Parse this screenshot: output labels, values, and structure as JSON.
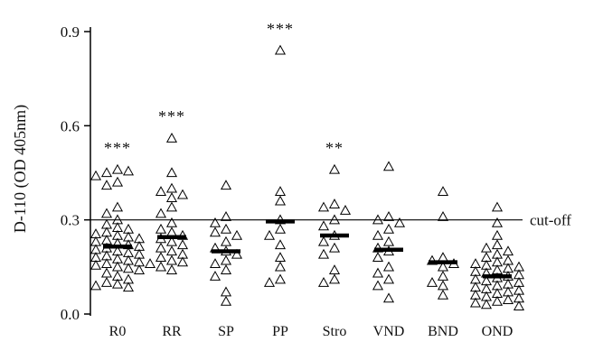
{
  "chart_data": {
    "type": "scatter",
    "title": "",
    "xlabel": "",
    "ylabel": "D-110 (OD 405nm)",
    "ylim": [
      0,
      0.9
    ],
    "y_ticks": [
      "0.0",
      "0.3",
      "0.6",
      "0.9"
    ],
    "y_tick_values": [
      0,
      0.3,
      0.6,
      0.9
    ],
    "grid": false,
    "marker": "open-triangle",
    "cutoff": {
      "value": 0.3,
      "label": "cut-off"
    },
    "categories": [
      "R0",
      "RR",
      "SP",
      "PP",
      "Stro",
      "VND",
      "BND",
      "OND"
    ],
    "significance": [
      "***",
      "***",
      "",
      "***",
      "**",
      "",
      "",
      ""
    ],
    "means": [
      0.215,
      0.245,
      0.2,
      0.295,
      0.25,
      0.205,
      0.165,
      0.12
    ],
    "points": [
      [
        0.46,
        0.45,
        0.455,
        0.44,
        0.42,
        0.41,
        0.34,
        0.32,
        0.3,
        0.285,
        0.275,
        0.27,
        0.26,
        0.255,
        0.25,
        0.245,
        0.24,
        0.235,
        0.23,
        0.225,
        0.22,
        0.215,
        0.21,
        0.205,
        0.2,
        0.195,
        0.19,
        0.185,
        0.18,
        0.175,
        0.17,
        0.165,
        0.16,
        0.155,
        0.15,
        0.145,
        0.14,
        0.13,
        0.12,
        0.11,
        0.1,
        0.095,
        0.09,
        0.085
      ],
      [
        0.56,
        0.45,
        0.4,
        0.39,
        0.38,
        0.37,
        0.34,
        0.32,
        0.29,
        0.27,
        0.26,
        0.25,
        0.24,
        0.23,
        0.22,
        0.21,
        0.2,
        0.19,
        0.18,
        0.17,
        0.165,
        0.16,
        0.15,
        0.14
      ],
      [
        0.41,
        0.31,
        0.29,
        0.27,
        0.26,
        0.25,
        0.23,
        0.21,
        0.2,
        0.19,
        0.17,
        0.16,
        0.14,
        0.12,
        0.07,
        0.04
      ],
      [
        0.84,
        0.39,
        0.36,
        0.3,
        0.27,
        0.25,
        0.22,
        0.18,
        0.15,
        0.11,
        0.1
      ],
      [
        0.46,
        0.35,
        0.34,
        0.33,
        0.3,
        0.28,
        0.25,
        0.23,
        0.21,
        0.19,
        0.14,
        0.11,
        0.1
      ],
      [
        0.47,
        0.31,
        0.3,
        0.29,
        0.27,
        0.25,
        0.23,
        0.21,
        0.2,
        0.18,
        0.15,
        0.13,
        0.11,
        0.09,
        0.05
      ],
      [
        0.39,
        0.31,
        0.18,
        0.17,
        0.16,
        0.15,
        0.12,
        0.1,
        0.09,
        0.06
      ],
      [
        0.34,
        0.29,
        0.25,
        0.22,
        0.21,
        0.2,
        0.19,
        0.18,
        0.17,
        0.165,
        0.16,
        0.155,
        0.15,
        0.145,
        0.14,
        0.135,
        0.13,
        0.125,
        0.12,
        0.115,
        0.11,
        0.105,
        0.1,
        0.095,
        0.09,
        0.085,
        0.08,
        0.075,
        0.07,
        0.065,
        0.06,
        0.055,
        0.05,
        0.045,
        0.04,
        0.035,
        0.03,
        0.025
      ]
    ]
  }
}
